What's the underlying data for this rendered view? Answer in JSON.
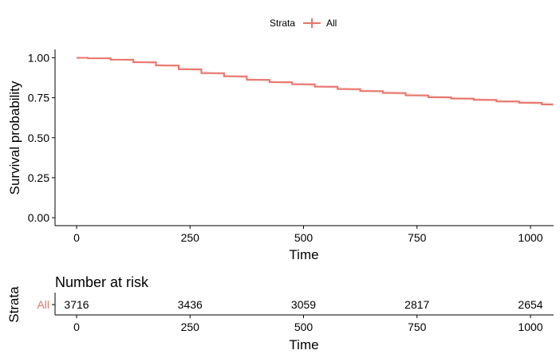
{
  "legend": {
    "title": "Strata",
    "items": [
      {
        "label": "All",
        "color": "#E8746B"
      }
    ]
  },
  "chart_data": {
    "type": "line",
    "ylabel": "Survival probability",
    "xlabel": "Time",
    "xlim": [
      0,
      1050
    ],
    "ylim": [
      0,
      1
    ],
    "x_ticks": [
      0,
      250,
      500,
      750,
      1000
    ],
    "x_tick_labels": [
      "0",
      "250",
      "500",
      "750",
      "1000"
    ],
    "y_ticks": [
      0,
      0.25,
      0.5,
      0.75,
      1.0
    ],
    "y_tick_labels": [
      "0.00",
      "0.25",
      "0.50",
      "0.75",
      "1.00"
    ],
    "grid": false,
    "legend_position": "top",
    "series": [
      {
        "name": "All",
        "color": "#E8746B",
        "x": [
          0,
          50,
          100,
          150,
          200,
          250,
          300,
          350,
          400,
          450,
          500,
          550,
          600,
          650,
          700,
          750,
          800,
          850,
          900,
          950,
          1000,
          1050
        ],
        "y": [
          1.0,
          0.997,
          0.988,
          0.972,
          0.952,
          0.928,
          0.904,
          0.884,
          0.862,
          0.847,
          0.834,
          0.819,
          0.804,
          0.792,
          0.78,
          0.765,
          0.753,
          0.745,
          0.737,
          0.727,
          0.719,
          0.708
        ]
      }
    ]
  },
  "risk_table": {
    "title": "Number at risk",
    "ylabel": "Strata",
    "xlabel": "Time",
    "strata": [
      {
        "label": "All",
        "color": "#E8746B",
        "times": [
          0,
          250,
          500,
          750,
          1000
        ],
        "values": [
          "3716",
          "3436",
          "3059",
          "2817",
          "2654"
        ]
      }
    ],
    "x_ticks": [
      0,
      250,
      500,
      750,
      1000
    ],
    "x_tick_labels": [
      "0",
      "250",
      "500",
      "750",
      "1000"
    ]
  }
}
